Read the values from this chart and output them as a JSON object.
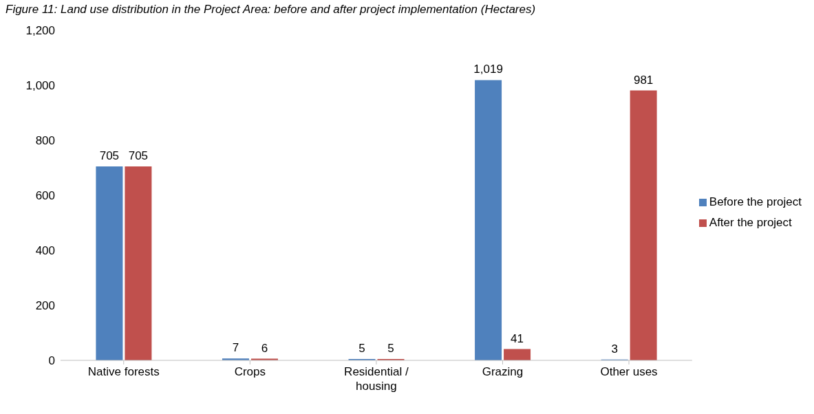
{
  "chart_data": {
    "type": "bar",
    "title": "Figure 11: Land use distribution in the Project Area: before and after project implementation (Hectares)",
    "categories": [
      "Native forests",
      "Crops",
      "Residential / housing",
      "Grazing",
      "Other uses"
    ],
    "series": [
      {
        "name": "Before the project",
        "color": "#4f81bd",
        "values": [
          705,
          7,
          5,
          1019,
          3
        ],
        "value_labels": [
          "705",
          "7",
          "5",
          "1,019",
          "3"
        ]
      },
      {
        "name": "After the project",
        "color": "#c0504d",
        "values": [
          705,
          6,
          5,
          41,
          981
        ],
        "value_labels": [
          "705",
          "6",
          "5",
          "41",
          "981"
        ]
      }
    ],
    "ylim": [
      0,
      1200
    ],
    "yticks": [
      {
        "value": 0,
        "label": "0"
      },
      {
        "value": 200,
        "label": "200"
      },
      {
        "value": 400,
        "label": "400"
      },
      {
        "value": 600,
        "label": "600"
      },
      {
        "value": 800,
        "label": "800"
      },
      {
        "value": 1000,
        "label": "1,000"
      },
      {
        "value": 1200,
        "label": "1,200"
      }
    ],
    "legend": "right",
    "grid": false
  }
}
